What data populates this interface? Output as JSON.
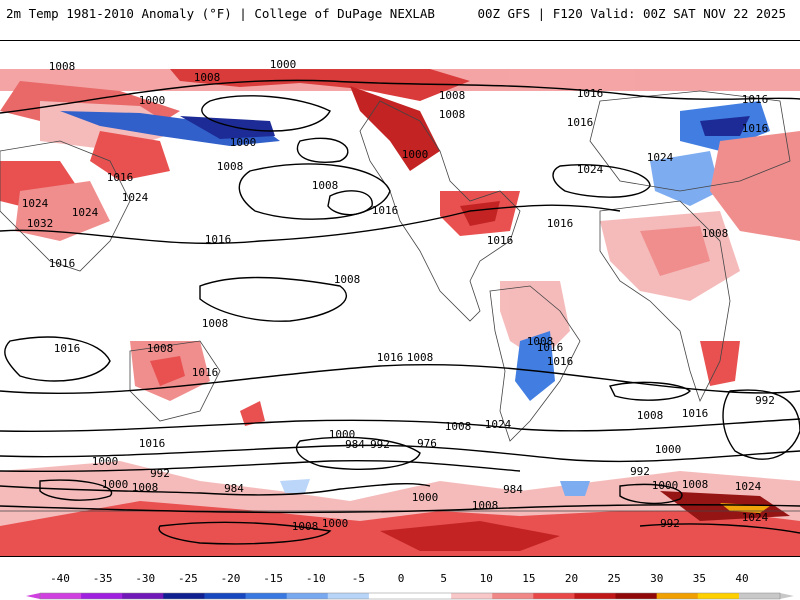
{
  "header": {
    "title": "2m Temp 1981-2010 Anomaly (°F) | College of DuPage NEXLAB",
    "run_info": "00Z GFS | F120 Valid: 00Z SAT NOV 22 2025"
  },
  "map": {
    "product": "2m Temperature Anomaly with MSLP contours",
    "pressure_labels": [
      "1008",
      "1000",
      "1008",
      "1016",
      "1008",
      "1016",
      "1000",
      "1008",
      "1016",
      "1000",
      "1016",
      "1024",
      "1016",
      "1024",
      "1000",
      "1008",
      "1016",
      "1024",
      "1032",
      "1024",
      "1008",
      "1024",
      "1016",
      "1016",
      "1016",
      "1008",
      "1008",
      "1008",
      "1008",
      "1016",
      "1016",
      "1016",
      "1008",
      "1016",
      "1016",
      "1016",
      "1000",
      "1008",
      "1016",
      "992",
      "1000",
      "984",
      "992",
      "976",
      "1024",
      "1008",
      "1008",
      "1000",
      "992",
      "1000",
      "1008",
      "1016",
      "1024",
      "1000",
      "1008",
      "992",
      "1008",
      "984",
      "1000",
      "984",
      "1008",
      "1000",
      "992",
      "1024",
      "1016"
    ]
  },
  "legend": {
    "ticks": [
      "-40",
      "-35",
      "-30",
      "-25",
      "-20",
      "-15",
      "-10",
      "-5",
      "0",
      "5",
      "10",
      "15",
      "20",
      "25",
      "30",
      "35",
      "40"
    ],
    "colors": [
      "#d040e0",
      "#a020e0",
      "#7018b8",
      "#102090",
      "#1848c0",
      "#3878e0",
      "#78a8f0",
      "#b8d4f8",
      "#ffffff",
      "#ffffff",
      "#f8c8c8",
      "#f08888",
      "#e84848",
      "#c01818",
      "#900808",
      "#f0a000",
      "#ffd000",
      "#c8c8c8"
    ]
  }
}
